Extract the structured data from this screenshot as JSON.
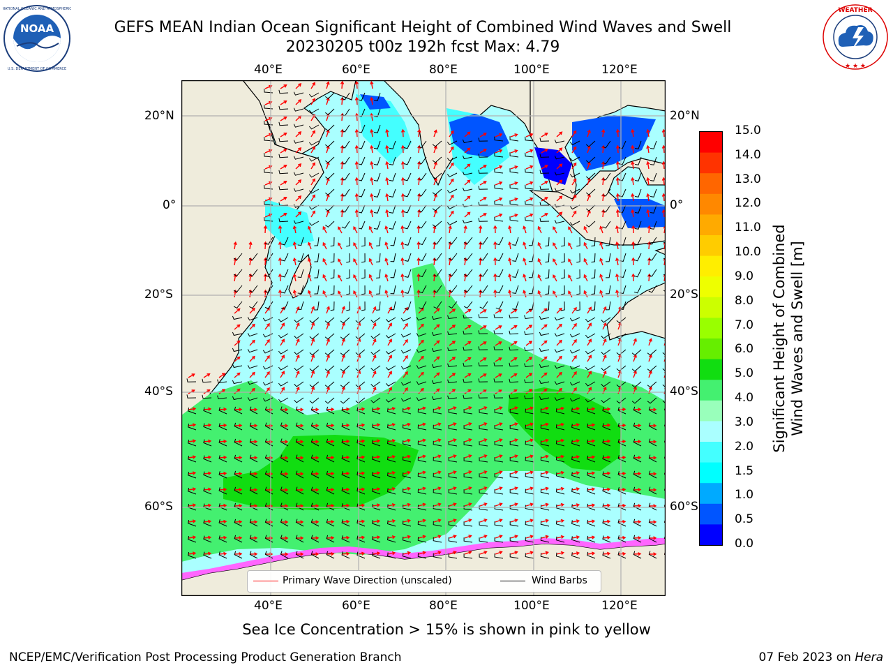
{
  "header": {
    "title_line1": "GEFS MEAN Indian Ocean Significant Height of Combined Wind Waves and Swell",
    "title_line2": "20230205 t00z 192h fcst   Max: 4.79"
  },
  "logos": {
    "left": {
      "name": "NOAA",
      "text": "NOAA",
      "ring_text": "NATIONAL OCEANIC AND ATMOSPHERIC ADMINISTRATION · U.S. DEPARTMENT OF COMMERCE"
    },
    "right": {
      "name": "National Weather Service",
      "ring_text": "NATIONAL WEATHER SERVICE"
    }
  },
  "map": {
    "lon_ticks_top": [
      "40°E",
      "60°E",
      "80°E",
      "100°E",
      "120°E"
    ],
    "lon_ticks_bottom": [
      "40°E",
      "60°E",
      "80°E",
      "100°E",
      "120°E"
    ],
    "lat_ticks_left": [
      "20°N",
      "0°",
      "20°S",
      "40°S",
      "60°S"
    ],
    "lat_ticks_right": [
      "20°N",
      "0°",
      "20°S",
      "40°S",
      "60°S"
    ],
    "colors": {
      "land": "#efecdc",
      "coast": "#000000",
      "grid": "#b0b0b0",
      "wave_arrow": "#ff0000",
      "wind_barb": "#000000",
      "sea_ice": [
        "#ff66ff",
        "#ffcc66",
        "#ffff66"
      ]
    }
  },
  "legend": {
    "primary_wave": "Primary Wave Direction (unscaled)",
    "wind_barbs": "Wind Barbs"
  },
  "colorbar": {
    "label_line1": "Significant Height of Combined",
    "label_line2": "Wind Waves and Swell [m]",
    "ticks": [
      "15.0",
      "14.0",
      "13.0",
      "12.0",
      "11.0",
      "10.0",
      "9.0",
      "8.0",
      "7.0",
      "6.0",
      "5.0",
      "4.0",
      "3.0",
      "2.0",
      "1.5",
      "1.0",
      "0.5",
      "0.0"
    ],
    "colors": [
      "#ff0000",
      "#ff3300",
      "#ff6600",
      "#ff8800",
      "#ffaa00",
      "#ffcc00",
      "#ffee00",
      "#eeff00",
      "#ccff00",
      "#99ff00",
      "#66ee00",
      "#11dd11",
      "#44f070",
      "#99ffbb",
      "#aaffff",
      "#44ffff",
      "#00ffff",
      "#00aaff",
      "#0055ff",
      "#0000ff"
    ]
  },
  "caption": "Sea Ice Concentration > 15% is shown in pink to yellow",
  "footer": {
    "left": "NCEP/EMC/Verification Post Processing Product Generation Branch",
    "right_date": "07 Feb 2023 on ",
    "right_host": "Hera"
  }
}
